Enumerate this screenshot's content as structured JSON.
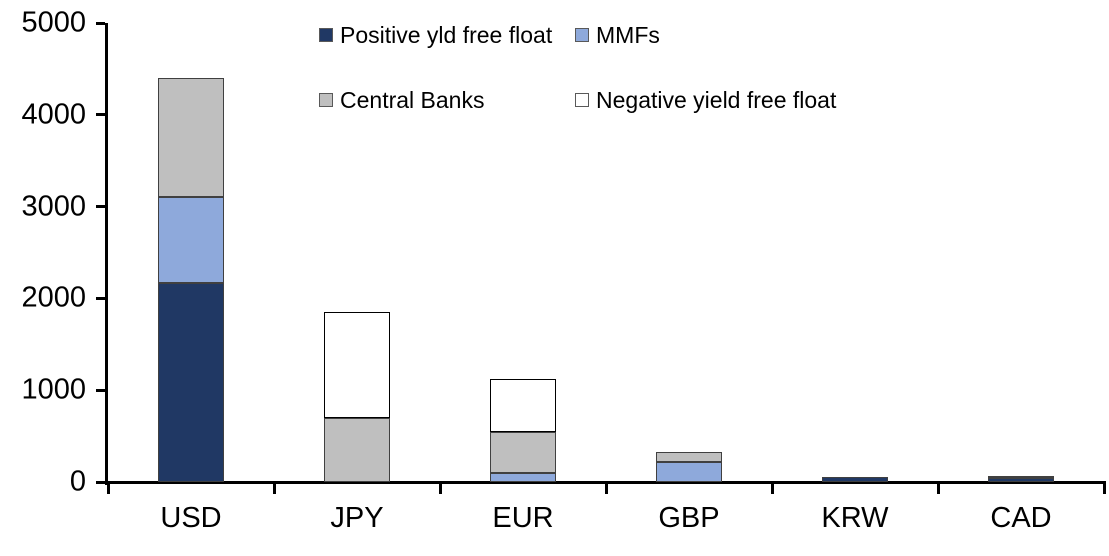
{
  "chart_data": {
    "type": "bar",
    "stacked": true,
    "title": "",
    "xlabel": "",
    "ylabel": "",
    "categories": [
      "USD",
      "JPY",
      "EUR",
      "GBP",
      "KRW",
      "CAD"
    ],
    "series": [
      {
        "name": "Positive yld free float",
        "color": "#203864",
        "values": [
          2170,
          0,
          0,
          0,
          50,
          40
        ]
      },
      {
        "name": "MMFs",
        "color": "#8EA9DB",
        "values": [
          940,
          0,
          100,
          220,
          0,
          0
        ]
      },
      {
        "name": "Central Banks",
        "color": "#BFBFBF",
        "values": [
          1290,
          700,
          445,
          110,
          0,
          20
        ]
      },
      {
        "name": "Negative yield free float",
        "color": "#FFFFFF",
        "values": [
          0,
          1150,
          575,
          0,
          0,
          0
        ]
      }
    ],
    "totals": [
      4400,
      1850,
      1120,
      330,
      50,
      60
    ],
    "ylim": [
      0,
      5000
    ],
    "yticks": [
      0,
      1000,
      2000,
      3000,
      4000,
      5000
    ],
    "grid": false,
    "legend_position": "top",
    "axis_color": "#000000",
    "bar_border_color": "#404040",
    "white_segment_border_color": "#000000"
  }
}
